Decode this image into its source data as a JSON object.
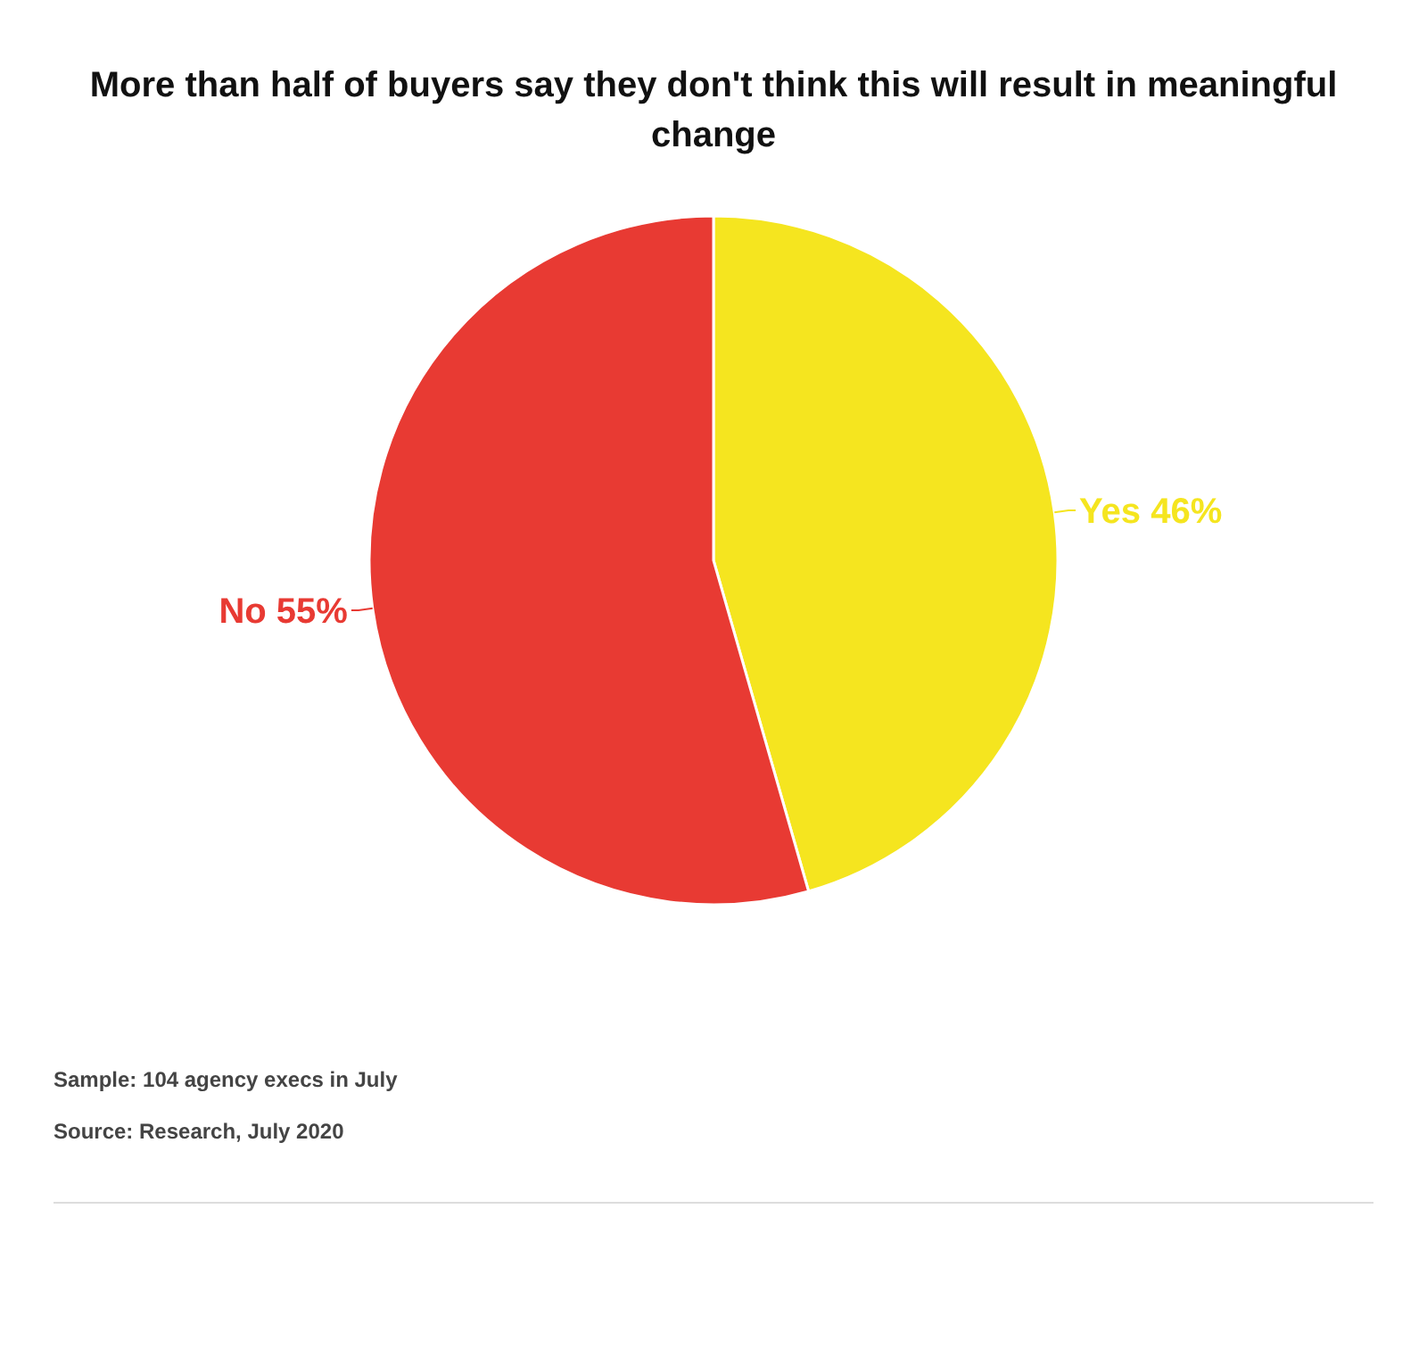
{
  "chart_data": {
    "type": "pie",
    "title": "More than half of buyers say they don't think this will result in meaningful change",
    "categories": [
      "Yes",
      "No"
    ],
    "values": [
      46,
      55
    ],
    "colors": [
      "#f5e51f",
      "#e83a33"
    ],
    "value_labels": [
      "46%",
      "55%"
    ],
    "annotations": [
      "Sample: 104 agency execs in July",
      "Source: Research, July 2020"
    ]
  }
}
